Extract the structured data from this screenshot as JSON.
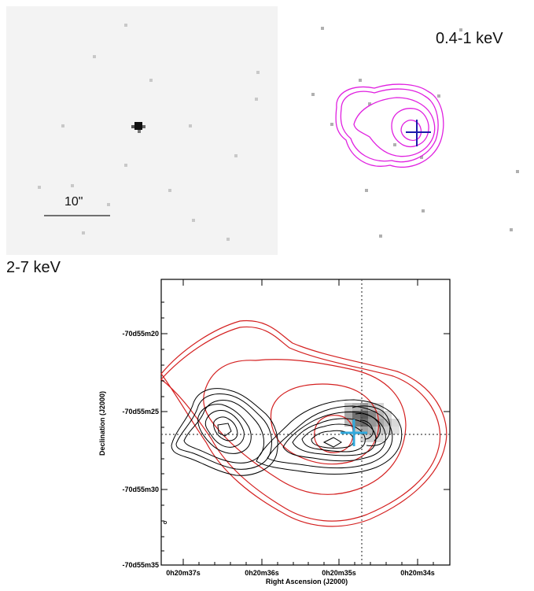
{
  "top_left": {
    "band": "2-7 keV",
    "scale_bar": "10\""
  },
  "top_right": {
    "band": "0.4-1 keV",
    "contour_color": "#e020e0",
    "marker_color": "#1a1aaa"
  },
  "main": {
    "ylabel": "Declination (J2000)",
    "xlabel": "Right Ascension (J2000)",
    "yticks": [
      "-70d55m20",
      "-70d55m25",
      "-70d55m30",
      "-70d55m35"
    ],
    "xticks": [
      "0h20m37s",
      "0h20m36s",
      "0h20m35s",
      "0h20m34s"
    ],
    "contour_colors": {
      "radio": "#d42020",
      "optical": "#000000",
      "marker": "#33aadd"
    }
  }
}
